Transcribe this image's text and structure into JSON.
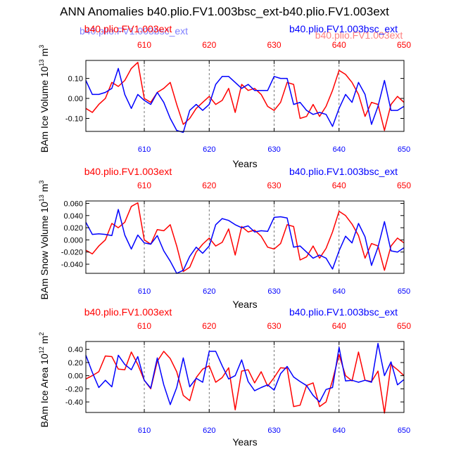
{
  "title": "ANN Anomalies b40.plio.FV1.003bsc_ext-b40.plio.FV1.003ext",
  "colors": {
    "series_a": "#ff0000",
    "series_b": "#0000ff",
    "ghost_a": "#ff6a6a",
    "ghost_b": "#6a6aff",
    "axis": "#000000"
  },
  "chart_data": [
    {
      "type": "line",
      "title": "",
      "ylabel": "BAm Ice Volume 10",
      "ylabel_exp": "13",
      "ylabel_unit": " m",
      "ylabel_unit_exp": "3",
      "xlabel": "Years",
      "xlim": [
        601,
        650
      ],
      "ylim": [
        -0.165,
        0.19
      ],
      "yticks": [
        0.1,
        0.0,
        -0.1
      ],
      "ytick_labels": [
        "0.10",
        "0.00",
        "-0.10"
      ],
      "xticks": [
        610,
        620,
        630,
        640,
        650
      ],
      "xtick_labels": [
        "610",
        "620",
        "630",
        "640",
        "650"
      ],
      "legend_left": "b40.plio.FV1.003ext",
      "legend_right": "b40.plio.FV1.003bsc_ext",
      "ghost_left": "b40.plio.FV1.003bsc_ext",
      "ghost_right": "b40.plio.FV1.003ext",
      "x": [
        601,
        602,
        603,
        604,
        605,
        606,
        607,
        608,
        609,
        610,
        611,
        612,
        613,
        614,
        615,
        616,
        617,
        618,
        619,
        620,
        621,
        622,
        623,
        624,
        625,
        626,
        627,
        628,
        629,
        630,
        631,
        632,
        633,
        634,
        635,
        636,
        637,
        638,
        639,
        640,
        641,
        642,
        643,
        644,
        645,
        646,
        647,
        648,
        649,
        650
      ],
      "series": [
        {
          "name": "b40.plio.FV1.003ext",
          "color": "#ff0000",
          "values": [
            -0.05,
            -0.07,
            -0.03,
            0.0,
            0.08,
            0.06,
            0.09,
            0.15,
            0.18,
            0.0,
            -0.02,
            0.03,
            0.05,
            0.08,
            -0.03,
            -0.13,
            -0.1,
            -0.05,
            -0.02,
            0.01,
            -0.03,
            -0.01,
            0.05,
            -0.07,
            0.07,
            0.04,
            0.05,
            0.02,
            -0.04,
            -0.06,
            -0.02,
            0.08,
            0.07,
            -0.1,
            -0.09,
            -0.03,
            -0.09,
            -0.04,
            0.04,
            0.14,
            0.12,
            0.08,
            0.02,
            -0.09,
            -0.02,
            -0.03,
            -0.16,
            -0.03,
            0.01,
            -0.02
          ]
        },
        {
          "name": "b40.plio.FV1.003bsc_ext",
          "color": "#0000ff",
          "values": [
            0.09,
            0.02,
            0.02,
            0.03,
            0.05,
            0.15,
            0.02,
            -0.05,
            0.02,
            -0.01,
            -0.03,
            0.03,
            -0.02,
            -0.1,
            -0.16,
            -0.17,
            -0.06,
            -0.03,
            -0.06,
            -0.03,
            0.07,
            0.11,
            0.11,
            0.08,
            0.05,
            0.07,
            0.04,
            0.04,
            0.04,
            0.11,
            0.1,
            0.1,
            -0.03,
            -0.02,
            -0.06,
            -0.08,
            -0.07,
            -0.08,
            -0.14,
            -0.05,
            0.02,
            -0.02,
            0.08,
            0.02,
            -0.13,
            -0.04,
            0.09,
            -0.06,
            -0.06,
            -0.04
          ]
        }
      ]
    },
    {
      "type": "line",
      "title": "",
      "ylabel": "BAm Snow Volume 10",
      "ylabel_exp": "13",
      "ylabel_unit": " m",
      "ylabel_unit_exp": "3",
      "xlabel": "Years",
      "xlim": [
        601,
        650
      ],
      "ylim": [
        -0.055,
        0.064
      ],
      "yticks": [
        0.06,
        0.04,
        0.02,
        0.0,
        -0.02,
        -0.04
      ],
      "ytick_labels": [
        "0.060",
        "0.040",
        "0.020",
        "0.000",
        "-0.020",
        "-0.040"
      ],
      "xticks": [
        610,
        620,
        630,
        640,
        650
      ],
      "xtick_labels": [
        "610",
        "620",
        "630",
        "640",
        "650"
      ],
      "legend_left": "b40.plio.FV1.003ext",
      "legend_right": "b40.plio.FV1.003bsc_ext",
      "ghost_left": "",
      "ghost_right": "",
      "x": [
        601,
        602,
        603,
        604,
        605,
        606,
        607,
        608,
        609,
        610,
        611,
        612,
        613,
        614,
        615,
        616,
        617,
        618,
        619,
        620,
        621,
        622,
        623,
        624,
        625,
        626,
        627,
        628,
        629,
        630,
        631,
        632,
        633,
        634,
        635,
        636,
        637,
        638,
        639,
        640,
        641,
        642,
        643,
        644,
        645,
        646,
        647,
        648,
        649,
        650
      ],
      "series": [
        {
          "name": "b40.plio.FV1.003ext",
          "color": "#ff0000",
          "values": [
            -0.017,
            -0.023,
            -0.01,
            0.0,
            0.027,
            0.02,
            0.029,
            0.055,
            0.061,
            0.0,
            -0.007,
            0.017,
            0.015,
            0.025,
            -0.01,
            -0.052,
            -0.045,
            -0.02,
            -0.007,
            0.003,
            -0.01,
            -0.004,
            0.018,
            -0.025,
            0.022,
            0.013,
            0.016,
            0.006,
            -0.012,
            -0.015,
            -0.006,
            0.025,
            0.022,
            -0.033,
            -0.028,
            -0.01,
            -0.03,
            -0.014,
            0.013,
            0.047,
            0.04,
            0.026,
            0.007,
            -0.03,
            -0.006,
            -0.01,
            -0.05,
            -0.01,
            0.003,
            -0.005
          ]
        },
        {
          "name": "b40.plio.FV1.003bsc_ext",
          "color": "#0000ff",
          "values": [
            0.029,
            0.009,
            0.01,
            0.009,
            0.007,
            0.05,
            0.008,
            -0.015,
            0.008,
            -0.005,
            -0.007,
            0.007,
            -0.018,
            -0.035,
            -0.055,
            -0.05,
            -0.027,
            -0.012,
            -0.022,
            -0.01,
            0.025,
            0.035,
            0.032,
            0.025,
            0.02,
            0.023,
            0.013,
            0.015,
            0.014,
            0.037,
            0.038,
            0.036,
            -0.012,
            -0.01,
            -0.02,
            -0.03,
            -0.025,
            -0.03,
            -0.048,
            -0.018,
            0.006,
            -0.005,
            0.027,
            0.005,
            -0.042,
            -0.012,
            0.03,
            -0.018,
            -0.02,
            -0.013
          ]
        }
      ]
    },
    {
      "type": "line",
      "title": "",
      "ylabel": "BAm Ice Area 10",
      "ylabel_exp": "12",
      "ylabel_unit": " m",
      "ylabel_unit_exp": "2",
      "xlabel": "Years",
      "xlim": [
        601,
        650
      ],
      "ylim": [
        -0.56,
        0.52
      ],
      "yticks": [
        0.4,
        0.2,
        0.0,
        -0.2,
        -0.4
      ],
      "ytick_labels": [
        "0.40",
        "0.20",
        "0.00",
        "-0.20",
        "-0.40"
      ],
      "xticks": [
        610,
        620,
        630,
        640,
        650
      ],
      "xtick_labels": [
        "610",
        "620",
        "630",
        "640",
        "650"
      ],
      "legend_left": "b40.plio.FV1.003ext",
      "legend_right": "b40.plio.FV1.003bsc_ext",
      "ghost_left": "",
      "ghost_right": "",
      "x": [
        601,
        602,
        603,
        604,
        605,
        606,
        607,
        608,
        609,
        610,
        611,
        612,
        613,
        614,
        615,
        616,
        617,
        618,
        619,
        620,
        621,
        622,
        623,
        624,
        625,
        626,
        627,
        628,
        629,
        630,
        631,
        632,
        633,
        634,
        635,
        636,
        637,
        638,
        639,
        640,
        641,
        642,
        643,
        644,
        645,
        646,
        647,
        648,
        649,
        650
      ],
      "series": [
        {
          "name": "b40.plio.FV1.003ext",
          "color": "#ff0000",
          "values": [
            -0.05,
            0.0,
            0.06,
            0.3,
            0.29,
            0.1,
            0.09,
            0.36,
            0.17,
            -0.07,
            -0.2,
            0.22,
            0.37,
            0.26,
            0.06,
            -0.3,
            -0.38,
            -0.03,
            0.1,
            0.15,
            -0.1,
            -0.03,
            0.12,
            -0.52,
            0.07,
            0.09,
            -0.11,
            0.06,
            -0.16,
            -0.03,
            0.12,
            0.11,
            -0.47,
            -0.45,
            -0.15,
            -0.11,
            -0.47,
            -0.4,
            -0.07,
            0.32,
            0.0,
            -0.08,
            0.36,
            -0.07,
            -0.09,
            0.07,
            -0.57,
            0.17,
            0.09,
            0.0
          ]
        },
        {
          "name": "b40.plio.FV1.003bsc_ext",
          "color": "#0000ff",
          "values": [
            0.31,
            0.05,
            -0.18,
            -0.07,
            -0.17,
            0.31,
            0.17,
            0.09,
            0.29,
            -0.07,
            -0.19,
            0.27,
            -0.14,
            -0.44,
            -0.18,
            0.27,
            -0.17,
            -0.04,
            -0.1,
            0.37,
            0.37,
            0.15,
            -0.05,
            0.0,
            0.24,
            -0.09,
            -0.23,
            -0.18,
            -0.14,
            -0.22,
            0.03,
            0.14,
            -0.02,
            -0.09,
            -0.15,
            -0.3,
            -0.4,
            -0.21,
            -0.18,
            0.43,
            -0.08,
            -0.07,
            -0.1,
            -0.07,
            -0.1,
            0.49,
            0.0,
            0.21,
            -0.14,
            -0.06
          ]
        }
      ]
    }
  ]
}
